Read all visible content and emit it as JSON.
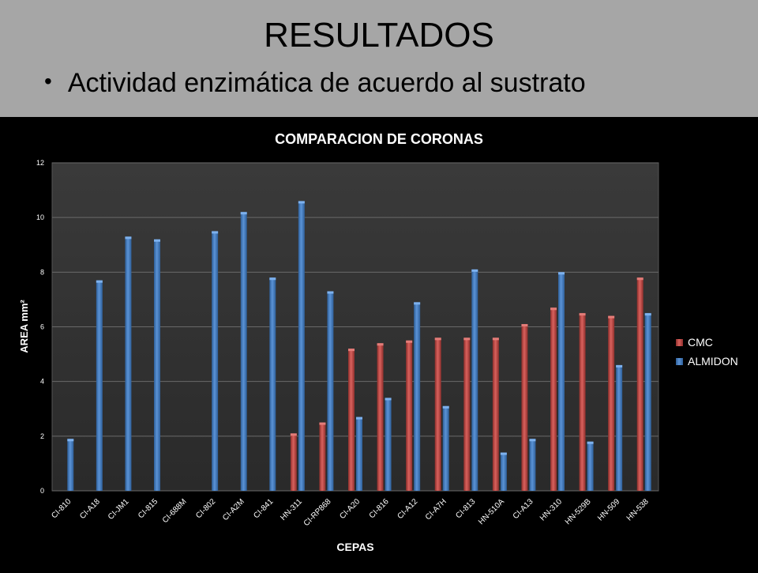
{
  "slide": {
    "title": "RESULTADOS",
    "bullet": "Actividad enzimática de acuerdo al sustrato"
  },
  "colors": {
    "header_bg": "#a6a6a6",
    "background": "#000000",
    "cmc": "#c0504d",
    "almidon": "#4f81bd"
  },
  "chart_data": {
    "type": "bar",
    "title": "COMPARACION DE CORONAS",
    "xlabel": "CEPAS",
    "ylabel": "AREA mm²",
    "ylim": [
      0,
      12
    ],
    "yticks": [
      0,
      2,
      4,
      6,
      8,
      10,
      12
    ],
    "grid": true,
    "legend_position": "right",
    "categories": [
      "CI-810",
      "CI-A18",
      "CI-JM1",
      "CI-815",
      "CI-688M",
      "CI-802",
      "CI-A2M",
      "CI-841",
      "HN-311",
      "CI-RP868",
      "CI-A20",
      "CI-816",
      "CI-A12",
      "CI-A7H",
      "CI-813",
      "HN-510A",
      "CI-A13",
      "HN-310",
      "HN-529B",
      "HN-509",
      "HN-538"
    ],
    "series": [
      {
        "name": "CMC",
        "color": "#c0504d",
        "values": [
          null,
          null,
          null,
          null,
          null,
          null,
          null,
          null,
          2.1,
          2.5,
          5.2,
          5.4,
          5.5,
          5.6,
          5.6,
          5.6,
          6.1,
          6.7,
          6.5,
          6.4,
          7.8
        ]
      },
      {
        "name": "ALMIDON",
        "color": "#4f81bd",
        "values": [
          1.9,
          7.7,
          9.3,
          9.2,
          null,
          9.5,
          10.2,
          7.8,
          10.6,
          7.3,
          2.7,
          3.4,
          6.9,
          3.1,
          8.1,
          1.4,
          1.9,
          8.0,
          1.8,
          4.6,
          6.5
        ]
      }
    ]
  }
}
